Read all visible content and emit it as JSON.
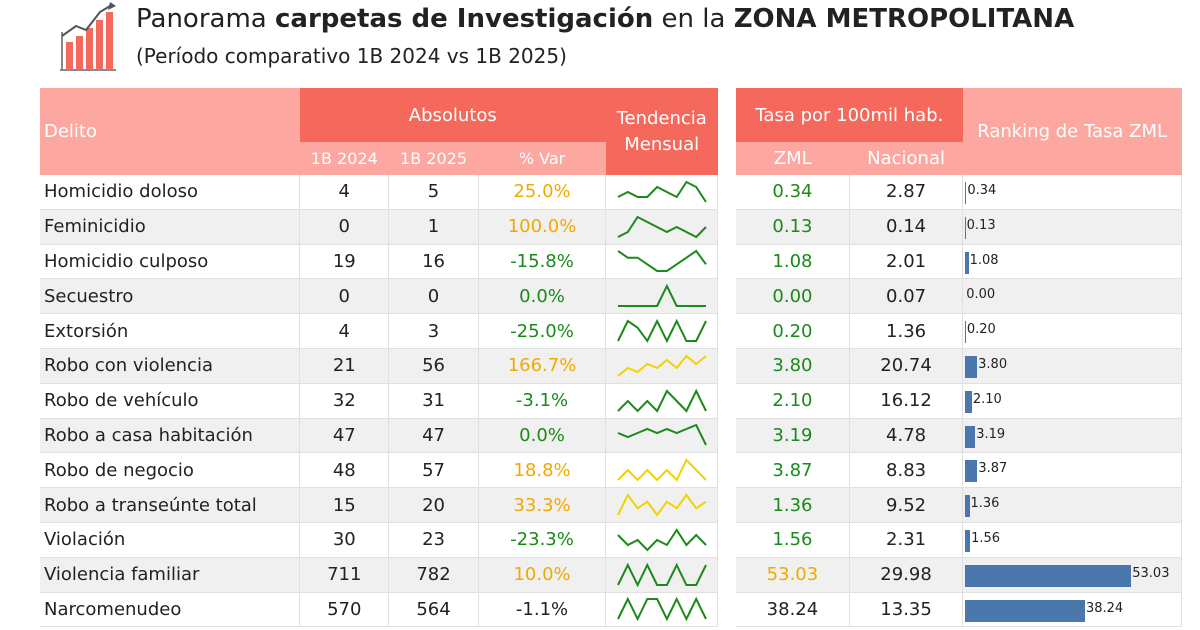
{
  "title": {
    "pre": "Panorama ",
    "bold1": "carpetas de Investigación",
    "mid": " en la ",
    "bold2": "ZONA METROPOLITANA"
  },
  "subtitle": "(Período comparativo 1B 2024 vs 1B 2025)",
  "headers": {
    "delito": "Delito",
    "absolutos": "Absolutos",
    "y2024": "1B 2024",
    "y2025": "1B 2025",
    "var": "% Var",
    "tendencia": "Tendencia Mensual",
    "tasa": "Tasa por 100mil hab.",
    "zml": "ZML",
    "nacional": "Nacional",
    "ranking": "Ranking de Tasa ZML"
  },
  "colors": {
    "header": "#f4695b",
    "header_light": "#fca7a0",
    "green": "#1a8a1a",
    "orange": "#f2a900",
    "bar": "#4a78ad"
  },
  "rows": [
    {
      "delito": "Homicidio doloso",
      "y2024": "4",
      "y2025": "5",
      "var": "25.0%",
      "var_color": "orange",
      "zml": "0.34",
      "zml_color": "green",
      "nacional": "2.87",
      "rank": "0.34",
      "spark": [
        2,
        3,
        2,
        2,
        4,
        3,
        2,
        5,
        4,
        1
      ],
      "spark_color": "#1a8a1a"
    },
    {
      "delito": "Feminicidio",
      "y2024": "0",
      "y2025": "1",
      "var": "100.0%",
      "var_color": "orange",
      "zml": "0.13",
      "zml_color": "green",
      "nacional": "0.14",
      "rank": "0.13",
      "spark": [
        1,
        2,
        5,
        4,
        3,
        2,
        3,
        2,
        1,
        3
      ],
      "spark_color": "#1a8a1a"
    },
    {
      "delito": "Homicidio culposo",
      "y2024": "19",
      "y2025": "16",
      "var": "-15.8%",
      "var_color": "green",
      "zml": "1.08",
      "zml_color": "green",
      "nacional": "2.01",
      "rank": "1.08",
      "spark": [
        5,
        4,
        4,
        3,
        2,
        2,
        3,
        4,
        5,
        3
      ],
      "spark_color": "#1a8a1a"
    },
    {
      "delito": "Secuestro",
      "y2024": "0",
      "y2025": "0",
      "var": "0.0%",
      "var_color": "green",
      "zml": "0.00",
      "zml_color": "green",
      "nacional": "0.07",
      "rank": "0.00",
      "spark": [
        0,
        0,
        0,
        0,
        0,
        1,
        0,
        0,
        0,
        0
      ],
      "spark_color": "#1a8a1a"
    },
    {
      "delito": "Extorsión",
      "y2024": "4",
      "y2025": "3",
      "var": "-25.0%",
      "var_color": "green",
      "zml": "0.20",
      "zml_color": "green",
      "nacional": "1.36",
      "rank": "0.20",
      "spark": [
        1,
        4,
        3,
        1,
        4,
        1,
        4,
        1,
        1,
        4
      ],
      "spark_color": "#1a8a1a"
    },
    {
      "delito": "Robo con violencia",
      "y2024": "21",
      "y2025": "56",
      "var": "166.7%",
      "var_color": "orange",
      "zml": "3.80",
      "zml_color": "green",
      "nacional": "20.74",
      "rank": "3.80",
      "spark": [
        1,
        3,
        2,
        4,
        3,
        5,
        3,
        6,
        4,
        6
      ],
      "spark_color": "#f2d100"
    },
    {
      "delito": "Robo de vehículo",
      "y2024": "32",
      "y2025": "31",
      "var": "-3.1%",
      "var_color": "green",
      "zml": "2.10",
      "zml_color": "green",
      "nacional": "16.12",
      "rank": "2.10",
      "spark": [
        3,
        4,
        3,
        4,
        3,
        5,
        4,
        3,
        5,
        3
      ],
      "spark_color": "#1a8a1a"
    },
    {
      "delito": "Robo a casa habitación",
      "y2024": "47",
      "y2025": "47",
      "var": "0.0%",
      "var_color": "green",
      "zml": "3.19",
      "zml_color": "green",
      "nacional": "4.78",
      "rank": "3.19",
      "spark": [
        4,
        3,
        4,
        5,
        4,
        5,
        4,
        5,
        6,
        1
      ],
      "spark_color": "#1a8a1a"
    },
    {
      "delito": "Robo de negocio",
      "y2024": "48",
      "y2025": "57",
      "var": "18.8%",
      "var_color": "orange",
      "zml": "3.87",
      "zml_color": "green",
      "nacional": "8.83",
      "rank": "3.87",
      "spark": [
        3,
        4,
        3,
        4,
        3,
        4,
        3,
        5,
        4,
        3
      ],
      "spark_color": "#f2d100"
    },
    {
      "delito": "Robo a transeúnte total",
      "y2024": "15",
      "y2025": "20",
      "var": "33.3%",
      "var_color": "orange",
      "zml": "1.36",
      "zml_color": "green",
      "nacional": "9.52",
      "rank": "1.36",
      "spark": [
        2,
        5,
        3,
        4,
        2,
        4,
        3,
        5,
        3,
        4
      ],
      "spark_color": "#f2d100"
    },
    {
      "delito": "Violación",
      "y2024": "30",
      "y2025": "23",
      "var": "-23.3%",
      "var_color": "green",
      "zml": "1.56",
      "zml_color": "green",
      "nacional": "2.31",
      "rank": "1.56",
      "spark": [
        4,
        2,
        3,
        1,
        3,
        2,
        5,
        2,
        4,
        2
      ],
      "spark_color": "#1a8a1a"
    },
    {
      "delito": "Violencia familiar",
      "y2024": "711",
      "y2025": "782",
      "var": "10.0%",
      "var_color": "orange",
      "zml": "53.03",
      "zml_color": "orange",
      "nacional": "29.98",
      "rank": "53.03",
      "spark": [
        3,
        4,
        3,
        4,
        3,
        3,
        4,
        3,
        3,
        4
      ],
      "spark_color": "#1a8a1a"
    },
    {
      "delito": "Narcomenudeo",
      "y2024": "570",
      "y2025": "564",
      "var": "-1.1%",
      "var_color": "dark",
      "zml": "38.24",
      "zml_color": "dark",
      "nacional": "13.35",
      "rank": "38.24",
      "spark": [
        3,
        4,
        3,
        4,
        4,
        3,
        4,
        3,
        4,
        3
      ],
      "spark_color": "#1a8a1a"
    }
  ]
}
